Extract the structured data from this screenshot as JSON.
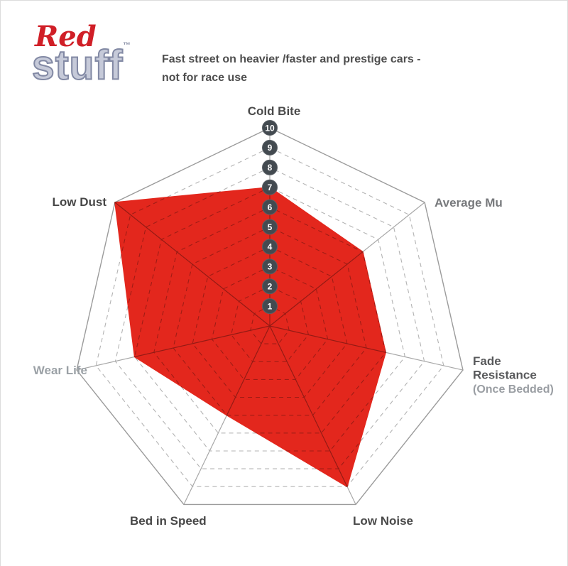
{
  "page": {
    "bg": "#ffffff",
    "border_color": "#dcdcdc"
  },
  "logo": {
    "red": "Red",
    "stuff": "stuff",
    "tm": "™",
    "red_color": "#d01f27",
    "stuff_fill": "#c6cad9",
    "stuff_stroke": "#8289a4"
  },
  "subtitle": {
    "line1": "Fast street on heavier /faster and prestige cars -",
    "line2": "not for race use",
    "color": "#4e4e4e"
  },
  "chart_data": {
    "type": "radar",
    "max": 10,
    "ring_values": [
      1,
      2,
      3,
      4,
      5,
      6,
      7,
      8,
      9,
      10
    ],
    "categories": [
      "Cold Bite",
      "Low Dust",
      "Wear Life",
      "Bed in Speed",
      "Low Noise",
      "Fade Resistance (Once Bedded)",
      "Average Mu"
    ],
    "values": [
      7,
      10,
      7,
      5,
      9,
      6,
      6
    ],
    "series": [
      {
        "name": "Redstuff",
        "values": [
          7,
          10,
          7,
          5,
          9,
          6,
          6
        ]
      }
    ],
    "legend_position": "none",
    "grid": "dashed-rings",
    "fill_color": "#e3271d",
    "grid_solid_color": "#9b9b9b",
    "grid_dash_color": "#b3b3b3",
    "axis_color": "#a8a8a8",
    "badge_bg": "#434a50",
    "badge_text_color": "#ffffff",
    "axis_labels": [
      {
        "lines": [
          {
            "text": "Cold Bite",
            "color": "#4a4a4a"
          }
        ]
      },
      {
        "lines": [
          {
            "text": "Low Dust",
            "color": "#474747"
          }
        ]
      },
      {
        "lines": [
          {
            "text": "Wear Life",
            "color": "#9ba1a6"
          }
        ]
      },
      {
        "lines": [
          {
            "text": "Bed in Speed",
            "color": "#474747"
          }
        ]
      },
      {
        "lines": [
          {
            "text": "Low Noise",
            "color": "#4a4a4a"
          }
        ]
      },
      {
        "lines": [
          {
            "text": "Fade",
            "color": "#58595b"
          },
          {
            "text": "Resistance",
            "color": "#58595b"
          },
          {
            "text": "(Once Bedded)",
            "color": "#9a9ea3",
            "size": 16
          }
        ]
      },
      {
        "lines": [
          {
            "text": "Average Mu",
            "color": "#77797c"
          }
        ]
      }
    ]
  }
}
